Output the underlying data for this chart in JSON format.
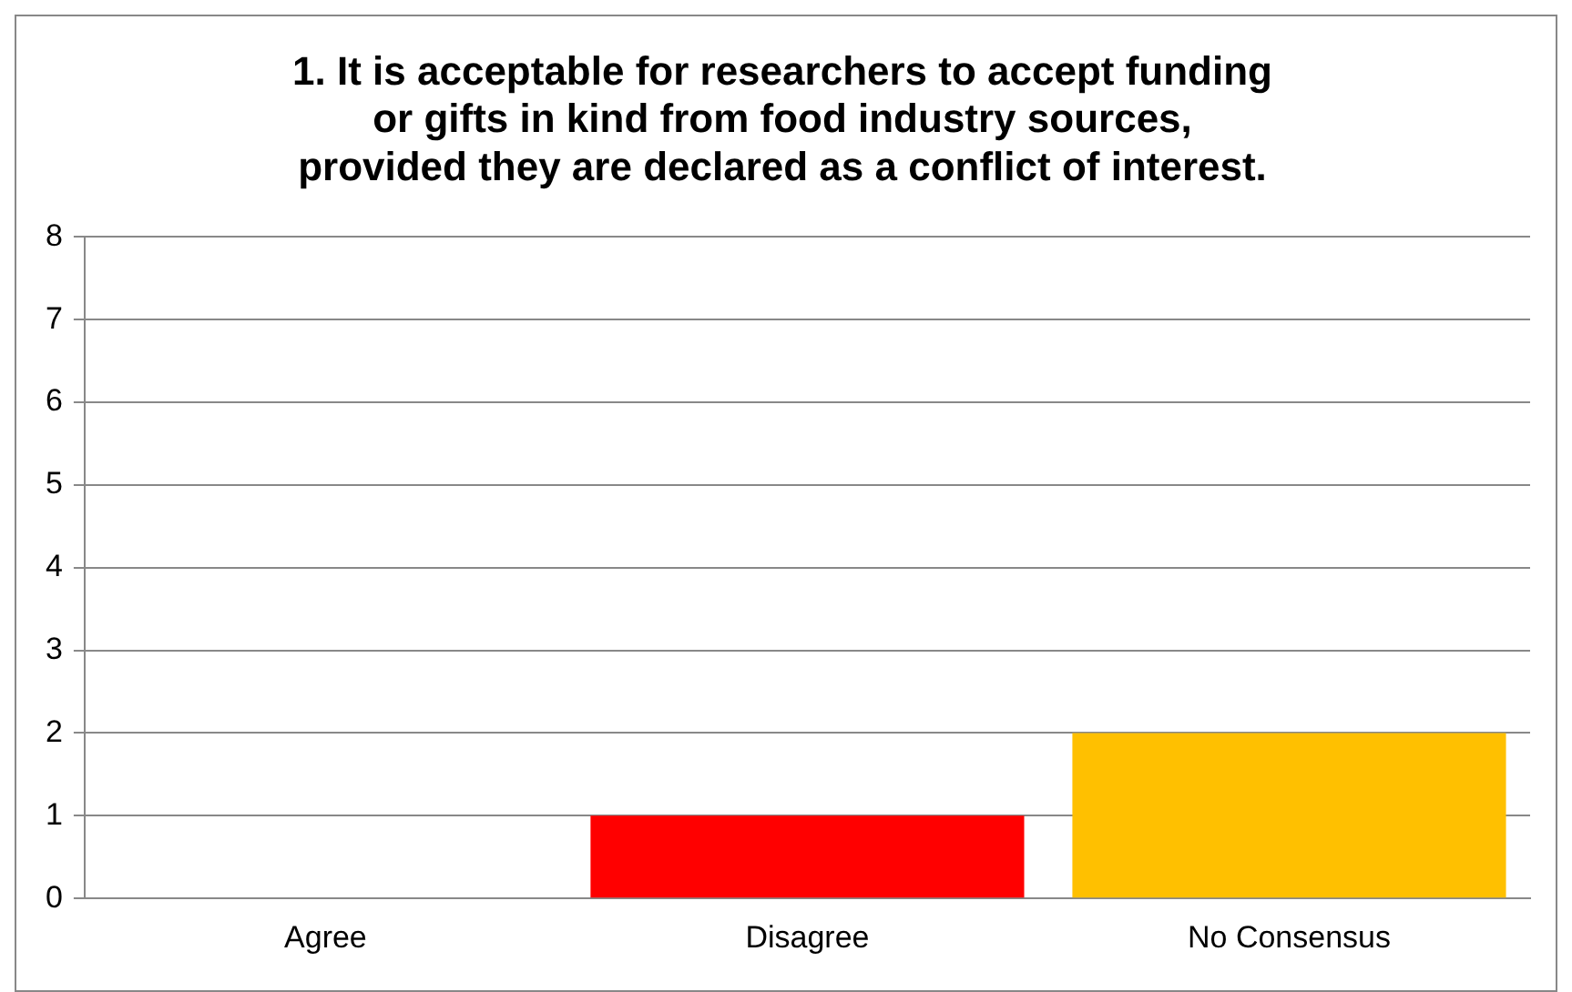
{
  "chart_data": {
    "type": "bar",
    "title": "1. It is acceptable for researchers to accept funding\nor gifts in kind from food industry sources,\nprovided they are declared as a conflict of interest.",
    "categories": [
      "Agree",
      "Disagree",
      "No Consensus"
    ],
    "values": [
      0,
      1,
      2
    ],
    "colors": [
      "#4f81bd",
      "#ff0000",
      "#ffc000"
    ],
    "ylim": [
      0,
      8
    ],
    "yticks": [
      0,
      1,
      2,
      3,
      4,
      5,
      6,
      7,
      8
    ],
    "grid": "y",
    "legend": false
  }
}
